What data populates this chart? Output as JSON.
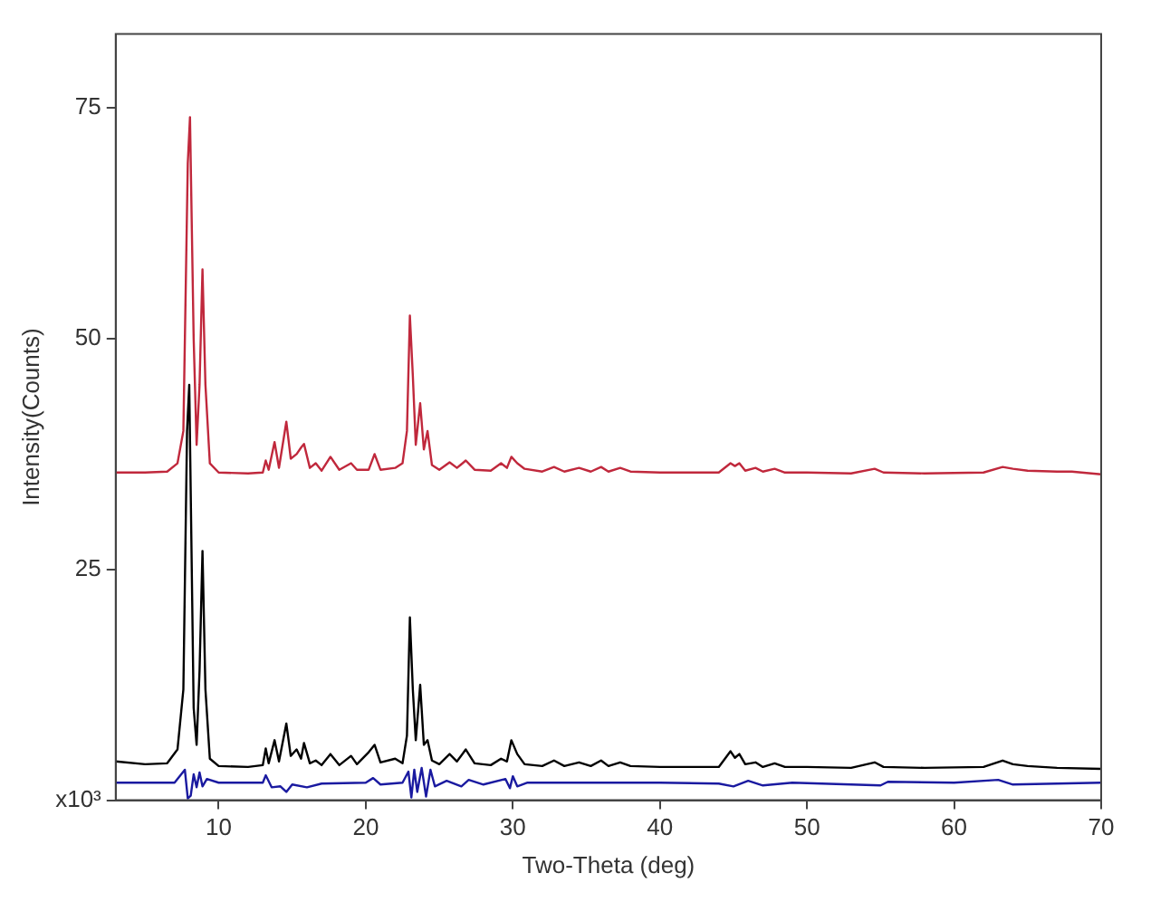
{
  "chart_data": {
    "type": "line",
    "xlabel": "Two-Theta (deg)",
    "ylabel": "Intensity(Counts)",
    "xlim": [
      3,
      70
    ],
    "xticks": [
      10,
      20,
      30,
      40,
      50,
      60,
      70
    ],
    "ylim": [
      0,
      83
    ],
    "yticks": [
      {
        "value": 0,
        "label": "x10³"
      },
      25,
      50,
      75
    ],
    "grid": false,
    "legend": false,
    "marker": "none",
    "line_style": "solid",
    "series": [
      {
        "color": "#c0283c",
        "x": [
          3,
          5,
          6.5,
          7.2,
          7.6,
          7.9,
          8.05,
          8.3,
          8.5,
          8.7,
          8.9,
          9.1,
          9.4,
          10,
          12,
          13,
          13.2,
          13.4,
          13.8,
          14.1,
          14.6,
          14.9,
          15.3,
          15.6,
          15.8,
          16.2,
          16.6,
          17,
          17.6,
          18.2,
          19,
          19.4,
          20.2,
          20.6,
          21,
          22,
          22.5,
          22.8,
          23,
          23.2,
          23.4,
          23.7,
          23.95,
          24.2,
          24.5,
          25,
          25.7,
          26.2,
          26.8,
          27.4,
          28.5,
          29.2,
          29.6,
          29.9,
          30.3,
          30.8,
          32,
          32.8,
          33.5,
          34.5,
          35.3,
          36,
          36.5,
          37.3,
          38,
          40,
          44,
          44.8,
          45.1,
          45.4,
          45.8,
          46.5,
          47,
          47.8,
          48.5,
          50,
          53,
          54.6,
          55.2,
          58,
          62,
          63.3,
          64,
          65,
          67,
          68,
          70
        ],
        "values": [
          35.5,
          35.5,
          35.6,
          36.5,
          40,
          69,
          74,
          50,
          38.5,
          45,
          57.5,
          45,
          36.5,
          35.5,
          35.4,
          35.5,
          36.8,
          35.8,
          38.8,
          36,
          41,
          37,
          37.5,
          38.2,
          38.6,
          36,
          36.5,
          35.7,
          37.2,
          35.8,
          36.5,
          35.8,
          35.8,
          37.5,
          35.8,
          36,
          36.5,
          40,
          52.5,
          46,
          38.5,
          43,
          38,
          40,
          36.3,
          35.8,
          36.6,
          36,
          36.8,
          35.8,
          35.7,
          36.5,
          36,
          37.2,
          36.5,
          35.9,
          35.6,
          36.1,
          35.6,
          36,
          35.6,
          36.1,
          35.6,
          36,
          35.6,
          35.5,
          35.5,
          36.5,
          36.2,
          36.5,
          35.7,
          36,
          35.6,
          35.9,
          35.5,
          35.5,
          35.4,
          35.9,
          35.5,
          35.4,
          35.5,
          36.1,
          35.9,
          35.7,
          35.6,
          35.6,
          35.3
        ]
      },
      {
        "color": "#000000",
        "x": [
          3,
          5,
          6.5,
          7.2,
          7.6,
          7.85,
          8,
          8.3,
          8.5,
          8.7,
          8.9,
          9.1,
          9.4,
          10,
          12,
          13,
          13.2,
          13.4,
          13.8,
          14.1,
          14.6,
          14.9,
          15.3,
          15.6,
          15.8,
          16.2,
          16.6,
          17,
          17.6,
          18.2,
          19,
          19.4,
          20.2,
          20.6,
          21,
          22,
          22.5,
          22.8,
          23,
          23.2,
          23.4,
          23.7,
          23.95,
          24.2,
          24.5,
          25,
          25.7,
          26.2,
          26.8,
          27.4,
          28.5,
          29.2,
          29.6,
          29.9,
          30.3,
          30.8,
          32,
          32.8,
          33.5,
          34.5,
          35.3,
          36,
          36.5,
          37.3,
          38,
          40,
          44,
          44.8,
          45.1,
          45.4,
          45.8,
          46.5,
          47,
          47.8,
          48.5,
          50,
          53,
          54.6,
          55.2,
          58,
          62,
          63.3,
          64,
          65,
          67,
          70
        ],
        "values": [
          4.2,
          3.9,
          4,
          5.5,
          12,
          40,
          45,
          10,
          6,
          14,
          27,
          12,
          4.5,
          3.7,
          3.6,
          3.8,
          5.6,
          4,
          6.5,
          4.2,
          8.3,
          4.8,
          5.5,
          4.5,
          6.2,
          4,
          4.3,
          3.8,
          5,
          3.8,
          4.8,
          3.9,
          5.2,
          6,
          4.1,
          4.5,
          4,
          7,
          19.8,
          12,
          6.5,
          12.5,
          6,
          6.5,
          4.3,
          3.9,
          5,
          4.2,
          5.5,
          4,
          3.8,
          4.5,
          4.2,
          6.5,
          5,
          3.9,
          3.7,
          4.3,
          3.7,
          4.1,
          3.7,
          4.3,
          3.7,
          4.1,
          3.7,
          3.6,
          3.6,
          5.3,
          4.6,
          5,
          3.9,
          4.1,
          3.6,
          4,
          3.6,
          3.6,
          3.5,
          4.1,
          3.6,
          3.5,
          3.6,
          4.3,
          3.9,
          3.7,
          3.5,
          3.4
        ]
      },
      {
        "color": "#1a1aa0",
        "x": [
          3,
          7,
          7.7,
          7.9,
          8.1,
          8.3,
          8.5,
          8.7,
          8.9,
          9.2,
          10,
          13,
          13.2,
          13.6,
          14.2,
          14.6,
          15,
          16,
          17,
          20,
          20.5,
          21,
          22.5,
          22.9,
          23.1,
          23.3,
          23.5,
          23.8,
          24.1,
          24.4,
          24.7,
          25.5,
          26.5,
          27,
          28,
          29.5,
          29.8,
          30,
          30.3,
          31,
          40,
          44,
          45,
          46,
          47,
          49,
          55,
          55.5,
          60,
          63,
          64,
          70
        ],
        "values": [
          1.9,
          1.9,
          3.3,
          0.2,
          0.5,
          2.8,
          1.4,
          3,
          1.5,
          2.3,
          1.9,
          1.9,
          2.7,
          1.4,
          1.5,
          0.9,
          1.7,
          1.4,
          1.8,
          1.9,
          2.4,
          1.7,
          1.9,
          3.1,
          0.3,
          3.3,
          0.9,
          3.5,
          0.4,
          3.3,
          1.5,
          2.1,
          1.5,
          2.2,
          1.7,
          2.3,
          1.3,
          2.6,
          1.5,
          1.9,
          1.9,
          1.8,
          1.5,
          2.1,
          1.6,
          1.9,
          1.6,
          2,
          1.9,
          2.2,
          1.7,
          1.9
        ]
      }
    ]
  }
}
